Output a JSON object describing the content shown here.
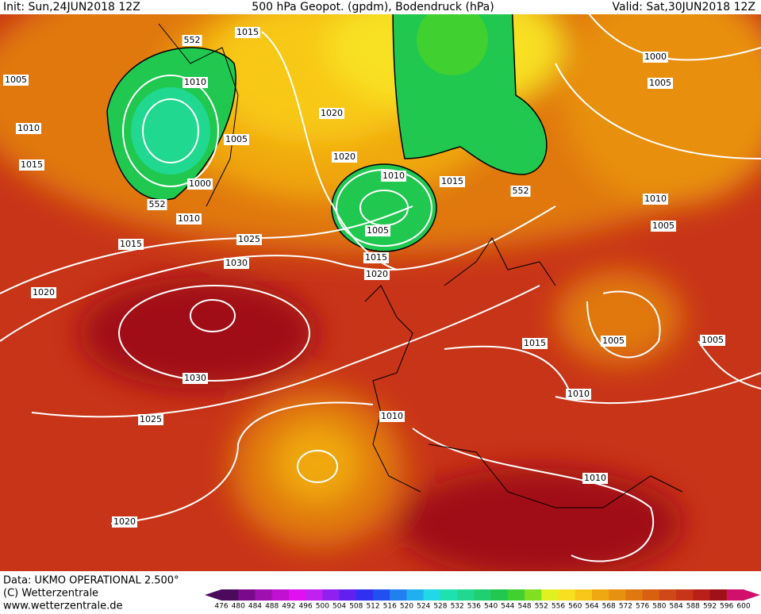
{
  "header": {
    "init": "Init: Sun,24JUN2018 12Z",
    "title": "500 hPa Geopot. (gpdm), Bodendruck (hPa)",
    "valid": "Valid: Sat,30JUN2018 12Z"
  },
  "map": {
    "isobar_labels": [
      "1015",
      "552",
      "1005",
      "1010",
      "1010",
      "1005",
      "1015",
      "1000",
      "552",
      "1010",
      "1015",
      "1025",
      "1030",
      "1020",
      "1030",
      "1025",
      "1020",
      "1020",
      "1020",
      "1010",
      "1015",
      "552",
      "1005",
      "1015",
      "1020",
      "1000",
      "1005",
      "1010",
      "1005",
      "1005",
      "1005",
      "1015",
      "1010",
      "1010",
      "1010"
    ]
  },
  "footer": {
    "data": "Data: UKMO OPERATIONAL 2.500°",
    "copyright": "(C) Wetterzentrale",
    "url": "www.wetterzentrale.de"
  },
  "colorbar": {
    "ticks": [
      476,
      480,
      484,
      488,
      492,
      496,
      500,
      504,
      508,
      512,
      516,
      520,
      524,
      528,
      532,
      536,
      540,
      544,
      548,
      552,
      556,
      560,
      564,
      568,
      572,
      576,
      580,
      584,
      588,
      592,
      596,
      600
    ],
    "colors": [
      "#4b0a5c",
      "#7a0a8a",
      "#a010b0",
      "#c010d0",
      "#e010f0",
      "#c020f0",
      "#9020f0",
      "#6020f0",
      "#3030f0",
      "#2050f0",
      "#2080f0",
      "#20b0f0",
      "#20d8e8",
      "#20e0b0",
      "#20d890",
      "#20d070",
      "#20c850",
      "#40d030",
      "#80e020",
      "#e0f020",
      "#f8e020",
      "#f8c818",
      "#f0a810",
      "#e89010",
      "#e07810",
      "#d86010",
      "#d04818",
      "#c83418",
      "#b82018",
      "#a01018",
      "#d0106a"
    ]
  }
}
